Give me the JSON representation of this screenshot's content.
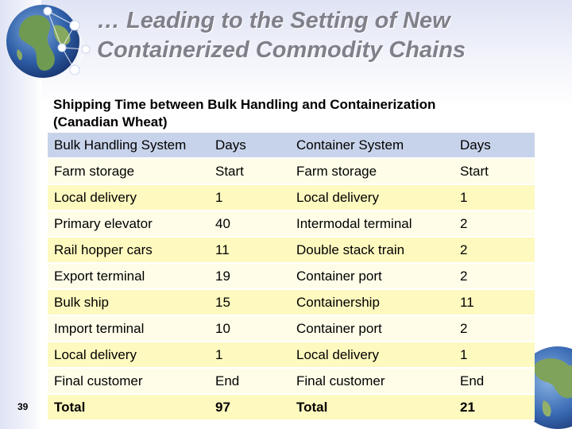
{
  "slide": {
    "title_lines": [
      "… Leading to the Setting of New",
      "Containerized Commodity Chains"
    ],
    "subtitle_lines": [
      "Shipping Time between Bulk Handling and Containerization",
      "(Canadian Wheat)"
    ],
    "number": "39"
  },
  "table": {
    "headers": [
      "Bulk Handling System",
      "Days",
      "Container System",
      "Days"
    ],
    "rows": [
      [
        "Farm storage",
        "Start",
        "Farm storage",
        "Start"
      ],
      [
        "Local delivery",
        "1",
        "Local delivery",
        "1"
      ],
      [
        "Primary elevator",
        "40",
        "Intermodal terminal",
        "2"
      ],
      [
        "Rail hopper cars",
        "11",
        "Double stack train",
        "2"
      ],
      [
        "Export terminal",
        "19",
        "Container port",
        "2"
      ],
      [
        "Bulk ship",
        "15",
        "Containership",
        "11"
      ],
      [
        "Import terminal",
        "10",
        "Container port",
        "2"
      ],
      [
        "Local delivery",
        "1",
        "Local delivery",
        "1"
      ],
      [
        "Final customer",
        "End",
        "Final customer",
        "End"
      ],
      [
        "Total",
        "97",
        "Total",
        "21"
      ]
    ]
  },
  "colors": {
    "header_fill": "#c7d3ea",
    "row_light": "#fffde8",
    "row_dark": "#fef9bf",
    "title_color": "#80808a"
  },
  "icons": [
    "globe-network-icon",
    "globe-icon"
  ]
}
